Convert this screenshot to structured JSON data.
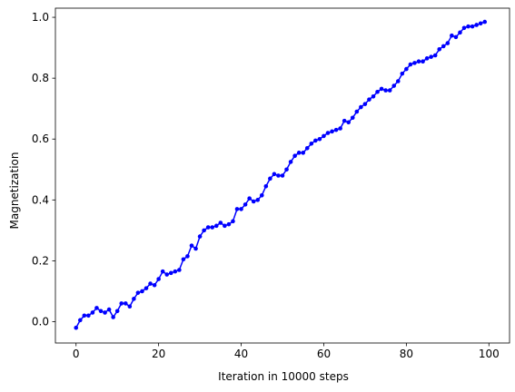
{
  "chart_data": {
    "type": "line",
    "title": "",
    "xlabel": "Iteration in 10000 steps",
    "ylabel": "Magnetization",
    "xlim": [
      -5,
      105
    ],
    "ylim": [
      -0.07,
      1.03
    ],
    "x_ticks": [
      0,
      20,
      40,
      60,
      80,
      100
    ],
    "x_tick_labels": [
      "0",
      "20",
      "40",
      "60",
      "80",
      "100"
    ],
    "y_ticks": [
      0.0,
      0.2,
      0.4,
      0.6,
      0.8,
      1.0
    ],
    "y_tick_labels": [
      "0.0",
      "0.2",
      "0.4",
      "0.6",
      "0.8",
      "1.0"
    ],
    "grid": false,
    "legend": "none",
    "series": [
      {
        "color": "#0000ff",
        "marker": "circle",
        "x": [
          0,
          1,
          2,
          3,
          4,
          5,
          6,
          7,
          8,
          9,
          10,
          11,
          12,
          13,
          14,
          15,
          16,
          17,
          18,
          19,
          20,
          21,
          22,
          23,
          24,
          25,
          26,
          27,
          28,
          29,
          30,
          31,
          32,
          33,
          34,
          35,
          36,
          37,
          38,
          39,
          40,
          41,
          42,
          43,
          44,
          45,
          46,
          47,
          48,
          49,
          50,
          51,
          52,
          53,
          54,
          55,
          56,
          57,
          58,
          59,
          60,
          61,
          62,
          63,
          64,
          65,
          66,
          67,
          68,
          69,
          70,
          71,
          72,
          73,
          74,
          75,
          76,
          77,
          78,
          79,
          80,
          81,
          82,
          83,
          84,
          85,
          86,
          87,
          88,
          89,
          90,
          91,
          92,
          93,
          94,
          95,
          96,
          97,
          98,
          99
        ],
        "y": [
          -0.02,
          0.005,
          0.02,
          0.02,
          0.03,
          0.045,
          0.035,
          0.03,
          0.04,
          0.015,
          0.035,
          0.06,
          0.06,
          0.05,
          0.075,
          0.095,
          0.1,
          0.11,
          0.125,
          0.12,
          0.14,
          0.165,
          0.155,
          0.16,
          0.165,
          0.17,
          0.205,
          0.215,
          0.25,
          0.24,
          0.28,
          0.3,
          0.31,
          0.31,
          0.315,
          0.325,
          0.315,
          0.32,
          0.33,
          0.37,
          0.37,
          0.385,
          0.405,
          0.395,
          0.4,
          0.415,
          0.445,
          0.47,
          0.485,
          0.48,
          0.48,
          0.5,
          0.525,
          0.545,
          0.555,
          0.555,
          0.57,
          0.585,
          0.595,
          0.6,
          0.61,
          0.62,
          0.625,
          0.63,
          0.635,
          0.66,
          0.655,
          0.67,
          0.69,
          0.705,
          0.715,
          0.73,
          0.74,
          0.755,
          0.765,
          0.76,
          0.76,
          0.775,
          0.79,
          0.815,
          0.83,
          0.845,
          0.85,
          0.855,
          0.855,
          0.865,
          0.87,
          0.875,
          0.895,
          0.905,
          0.915,
          0.94,
          0.935,
          0.95,
          0.965,
          0.97,
          0.97,
          0.975,
          0.98,
          0.985
        ]
      }
    ]
  }
}
